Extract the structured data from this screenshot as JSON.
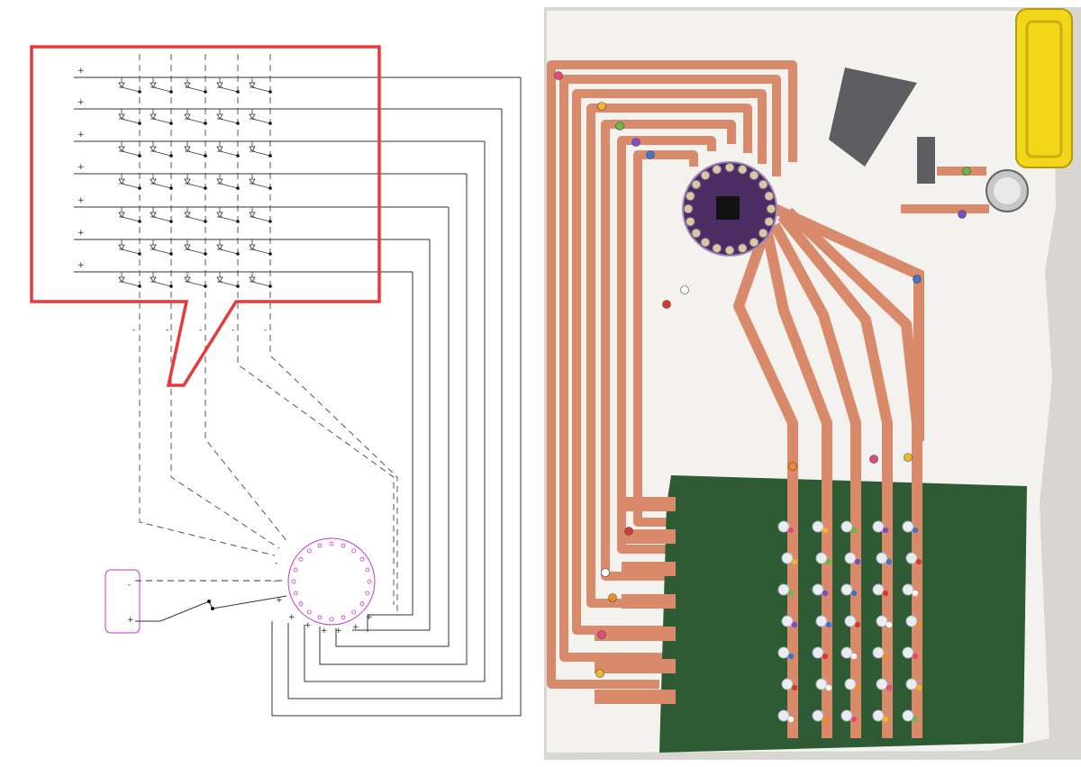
{
  "schematic": {
    "plus_sign": "+",
    "minus_sign": "-",
    "matrix": {
      "rows": 7,
      "cols": 5
    },
    "controller_pins": 20,
    "callout_color": "#e83a3a",
    "controller_color": "#cc33cc"
  },
  "photo": {
    "trace_color": "#d98a6a",
    "fabric_color": "#f4f2ee",
    "felt_color": "#2e5b34",
    "board_color": "#4b2d63",
    "battery_case_color": "#f2d61a",
    "sensor_color": "#5e5e62",
    "led_count": 35,
    "snap_colors": [
      "#e24b77",
      "#f0b52b",
      "#69b84a",
      "#7b4fc8",
      "#3f74c9",
      "#d43a34",
      "#ffffff",
      "#f08a2c"
    ]
  }
}
